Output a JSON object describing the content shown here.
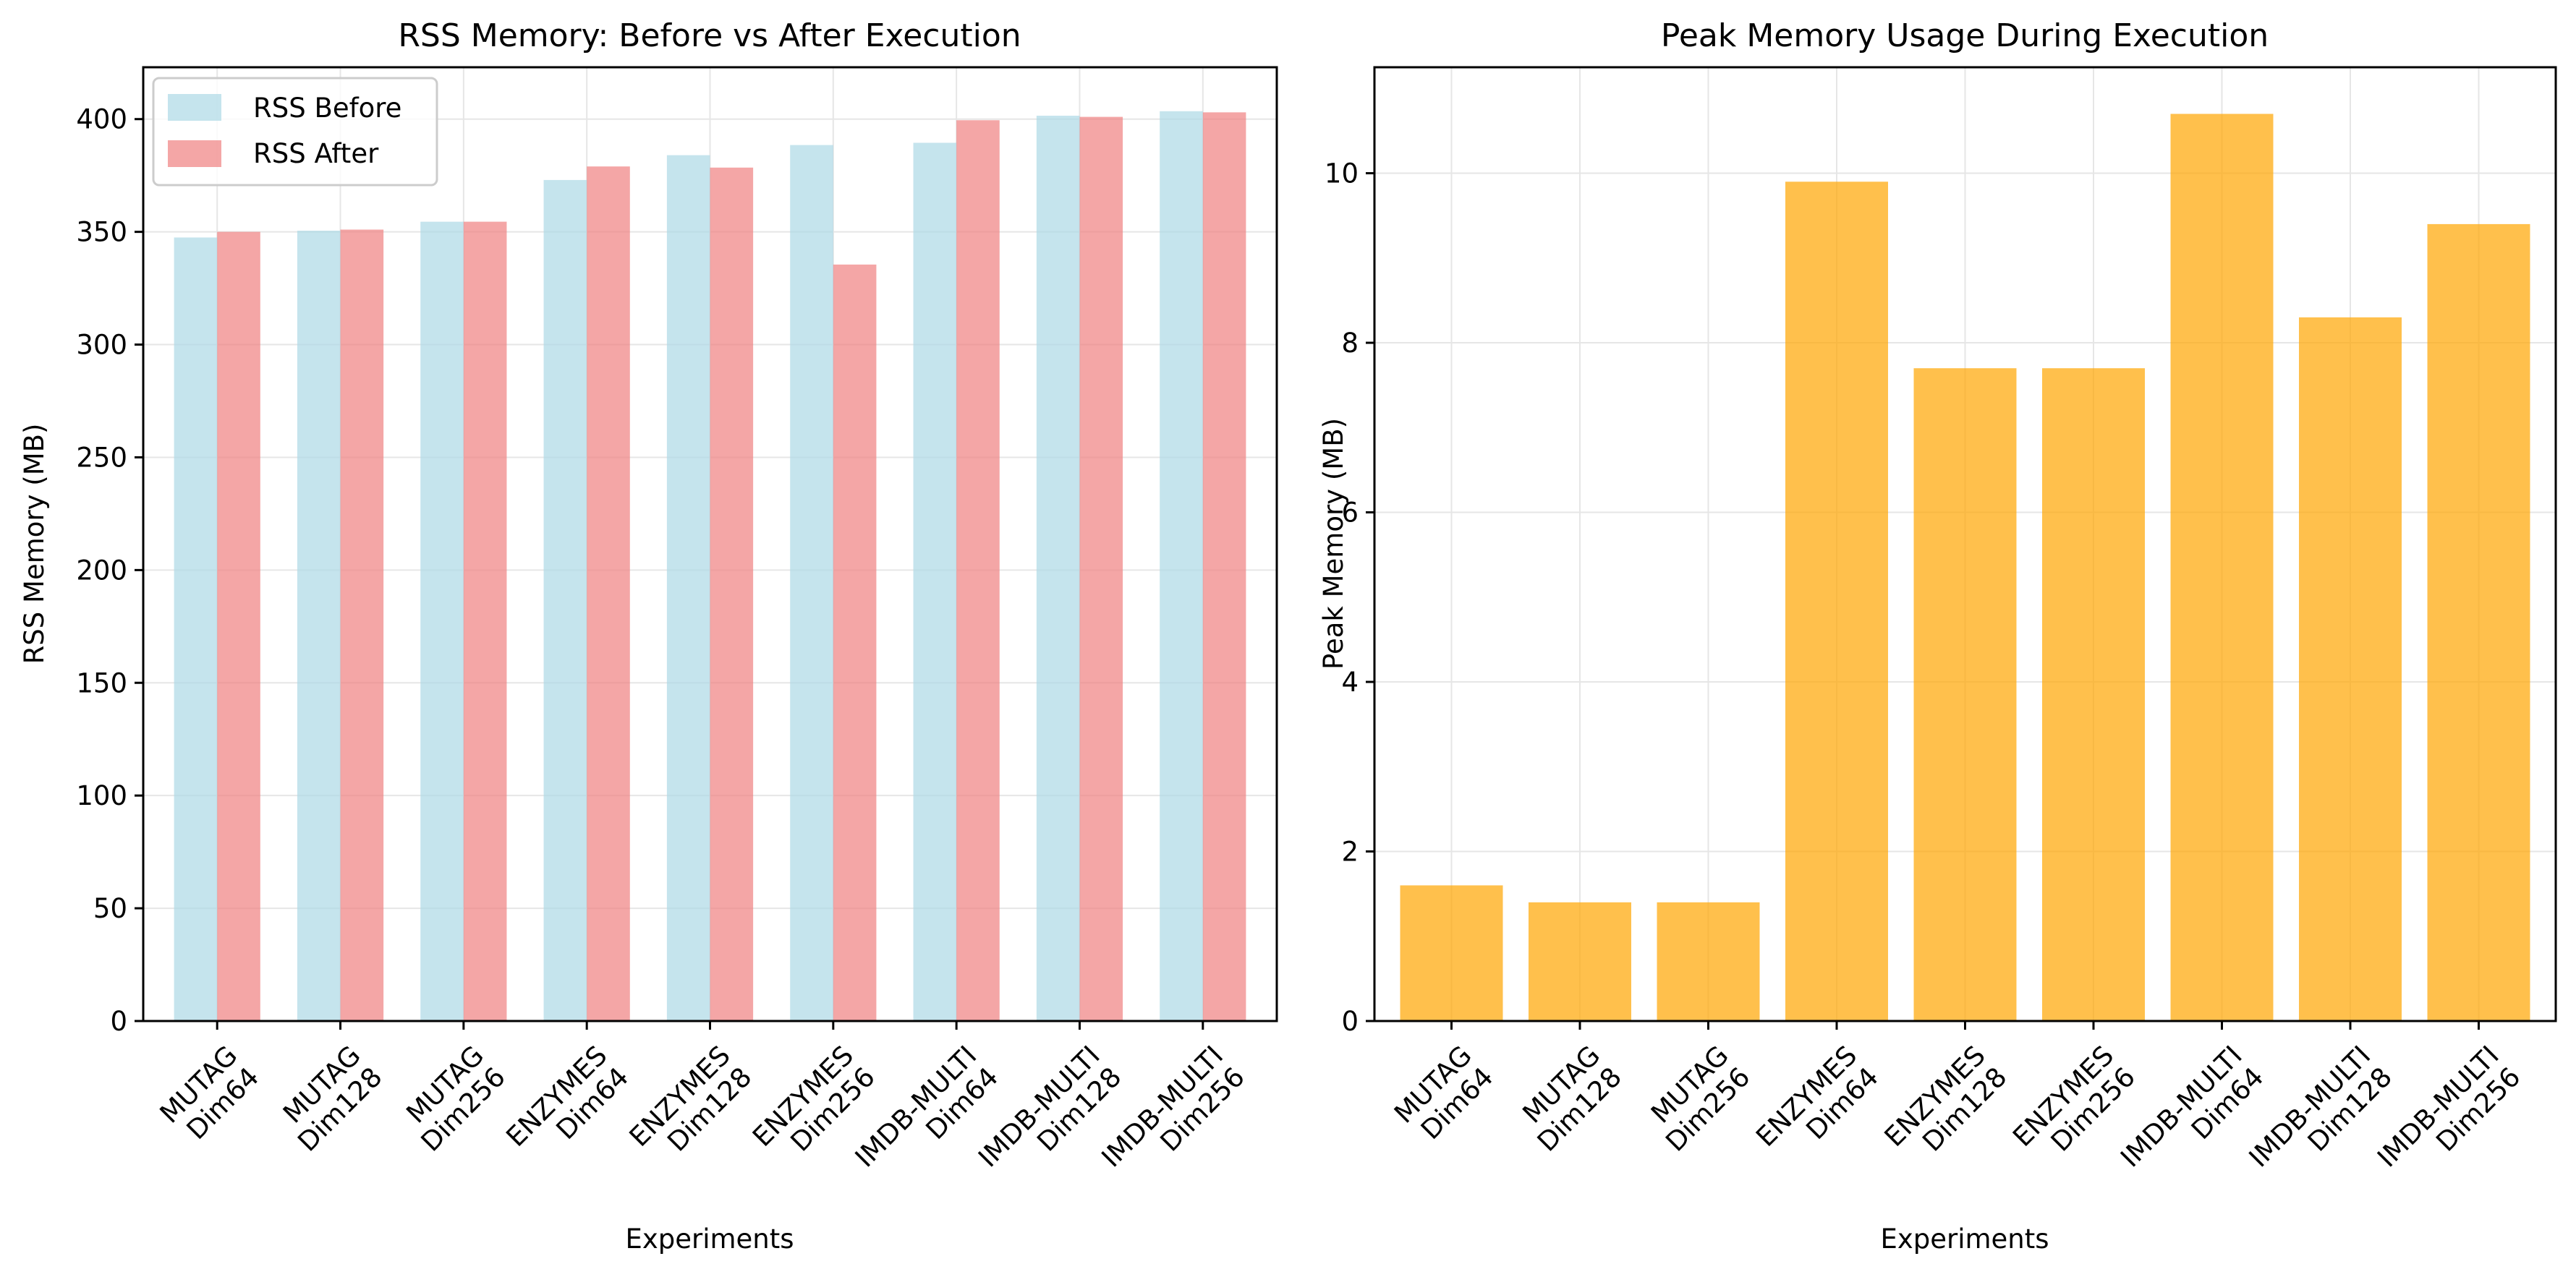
{
  "figure": {
    "background": "#ffffff",
    "text_color": "#000000",
    "grid_color": "#e6e6e6"
  },
  "chart_data": [
    {
      "type": "bar",
      "title": "RSS Memory: Before vs After Execution",
      "xlabel": "Experiments",
      "ylabel": "RSS Memory (MB)",
      "categories": [
        "MUTAG\nDim64",
        "MUTAG\nDim128",
        "MUTAG\nDim256",
        "ENZYMES\nDim64",
        "ENZYMES\nDim128",
        "ENZYMES\nDim256",
        "IMDB-MULTI\nDim64",
        "IMDB-MULTI\nDim128",
        "IMDB-MULTI\nDim256"
      ],
      "ylim": [
        0,
        423
      ],
      "yticks": [
        0,
        50,
        100,
        150,
        200,
        250,
        300,
        350,
        400
      ],
      "grid": true,
      "legend_position": "upper-left",
      "series": [
        {
          "name": "RSS Before",
          "color": "#add8e6",
          "values": [
            347.5,
            350.5,
            354.5,
            373,
            384,
            388.5,
            389.5,
            401.5,
            403.5
          ]
        },
        {
          "name": "RSS After",
          "color": "#f08080",
          "values": [
            350,
            351,
            354.5,
            379,
            378.5,
            335.5,
            399.5,
            401,
            403
          ]
        }
      ]
    },
    {
      "type": "bar",
      "title": "Peak Memory Usage During Execution",
      "xlabel": "Experiments",
      "ylabel": "Peak Memory (MB)",
      "categories": [
        "MUTAG\nDim64",
        "MUTAG\nDim128",
        "MUTAG\nDim256",
        "ENZYMES\nDim64",
        "ENZYMES\nDim128",
        "ENZYMES\nDim256",
        "IMDB-MULTI\nDim64",
        "IMDB-MULTI\nDim128",
        "IMDB-MULTI\nDim256"
      ],
      "ylim": [
        0,
        11.25
      ],
      "yticks": [
        0,
        2,
        4,
        6,
        8,
        10
      ],
      "grid": true,
      "series": [
        {
          "color": "#ffa500",
          "values": [
            1.6,
            1.4,
            1.4,
            9.9,
            7.7,
            7.7,
            10.7,
            8.3,
            9.4
          ]
        }
      ]
    }
  ]
}
